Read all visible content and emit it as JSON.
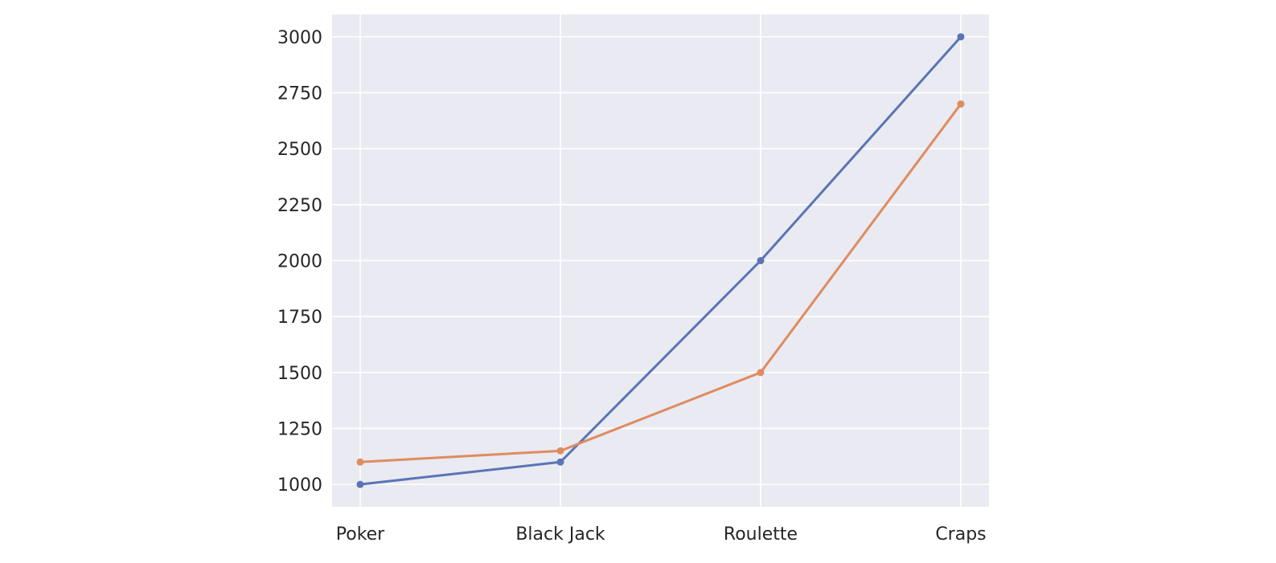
{
  "chart_data": {
    "type": "line",
    "title": "",
    "xlabel": "",
    "ylabel": "",
    "categories": [
      "Poker",
      "Black Jack",
      "Roulette",
      "Craps"
    ],
    "series": [
      {
        "values": [
          1000,
          1100,
          2000,
          3000
        ],
        "color": "#5975b5"
      },
      {
        "values": [
          1100,
          1150,
          1500,
          2700
        ],
        "color": "#de8c5f"
      }
    ],
    "ylim": [
      900,
      3100
    ],
    "yticks": [
      1000,
      1250,
      1500,
      1750,
      2000,
      2250,
      2500,
      2750,
      3000
    ],
    "grid": true,
    "background_color": "#eaeaf2",
    "grid_color": "#ffffff",
    "markers": true
  }
}
